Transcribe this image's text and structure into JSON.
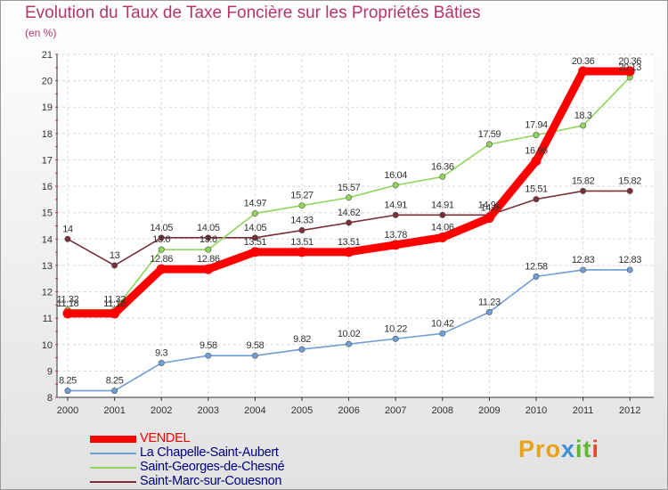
{
  "title": "Evolution du Taux de Taxe Foncière sur les Propriétés Bâties",
  "unit_label": "(en %)",
  "logo": {
    "text": "Proxiti",
    "parts": [
      "Pro",
      "x",
      "it",
      "i"
    ]
  },
  "chart_data": {
    "type": "line",
    "title": "Evolution du Taux de Taxe Foncière sur les Propriétés Bâties",
    "ylabel": "(en %)",
    "xlabel": "",
    "ylim": [
      8,
      21
    ],
    "yticks": [
      "8",
      "9",
      "10",
      "11",
      "12",
      "13",
      "14",
      "15",
      "16",
      "17",
      "18",
      "19",
      "20",
      "21"
    ],
    "grid": true,
    "legend_position": "bottom-left",
    "x": [
      "2000",
      "2001",
      "2002",
      "2003",
      "2004",
      "2005",
      "2006",
      "2007",
      "2008",
      "2009",
      "2010",
      "2011",
      "2012"
    ],
    "series": [
      {
        "name": "VENDEL",
        "color": "#ff0000",
        "values": [
          11.18,
          11.18,
          12.86,
          12.86,
          13.51,
          13.51,
          13.51,
          13.78,
          14.06,
          14.8,
          16.96,
          20.36,
          20.36
        ],
        "labels": [
          "11.18",
          "11.18",
          "12.86",
          "12.86",
          "13.51",
          "13.51",
          "13.51",
          "13.78",
          "14.06",
          "14.8",
          "16.96",
          "20.36",
          "20.36"
        ]
      },
      {
        "name": "La Chapelle-Saint-Aubert",
        "color": "#6e9fd6",
        "values": [
          8.25,
          8.25,
          9.3,
          9.58,
          9.58,
          9.82,
          10.02,
          10.22,
          10.42,
          11.23,
          12.58,
          12.83,
          12.83
        ],
        "labels": [
          "8.25",
          "8.25",
          "9.3",
          "9.58",
          "9.58",
          "9.82",
          "10.02",
          "10.22",
          "10.42",
          "11.23",
          "12.58",
          "12.83",
          "12.83"
        ]
      },
      {
        "name": "Saint-Georges-de-Chesné",
        "color": "#8fd65a",
        "values": [
          11.32,
          11.32,
          13.6,
          13.6,
          14.97,
          15.27,
          15.57,
          16.04,
          16.36,
          17.59,
          17.94,
          18.3,
          20.13
        ],
        "labels": [
          "11.32",
          "11.32",
          "13.6",
          "13.6",
          "14.97",
          "15.27",
          "15.57",
          "16.04",
          "16.36",
          "17.59",
          "17.94",
          "18.3",
          "20.13"
        ]
      },
      {
        "name": "Saint-Marc-sur-Couesnon",
        "color": "#7a2f3a",
        "values": [
          14,
          13,
          14.05,
          14.05,
          14.05,
          14.33,
          14.62,
          14.91,
          14.91,
          14.91,
          15.51,
          15.82,
          15.82
        ],
        "labels": [
          "14",
          "13",
          "14.05",
          "14.05",
          "14.05",
          "14.33",
          "14.62",
          "14.91",
          "14.91",
          "14.91",
          "15.51",
          "15.82",
          "15.82"
        ]
      }
    ]
  }
}
